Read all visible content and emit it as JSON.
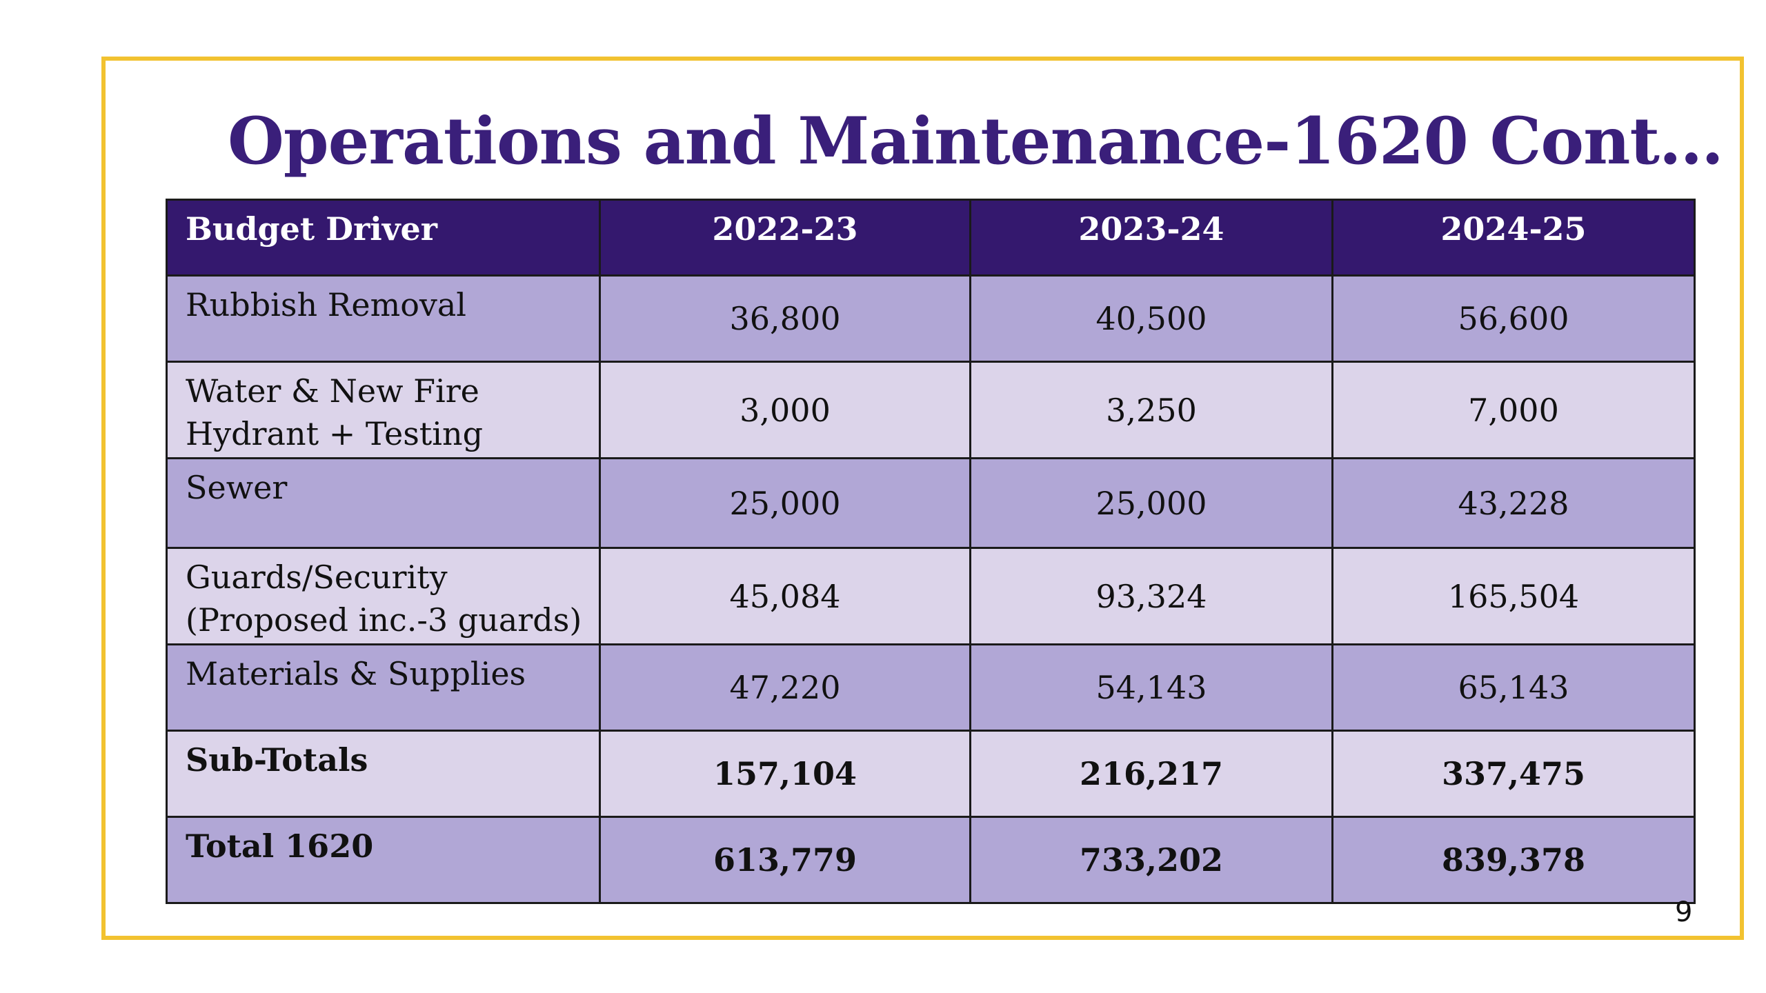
{
  "slide": {
    "title": "Operations and Maintenance-1620 Cont…",
    "page_number": "9",
    "colors": {
      "title": "#3a1f7a",
      "header_bg": "#34186e",
      "row_dark": "#b1a7d6",
      "row_light": "#dcd4ea",
      "frame_border": "#f2c230"
    }
  },
  "table": {
    "headers": [
      "Budget Driver",
      "2022-23",
      "2023-24",
      "2024-25"
    ],
    "rows": [
      {
        "driver": "Rubbish Removal",
        "y1": "36,800",
        "y2": "40,500",
        "y3": "56,600"
      },
      {
        "driver": "Water & New Fire Hydrant + Testing",
        "y1": "3,000",
        "y2": "3,250",
        "y3": "7,000"
      },
      {
        "driver": "Sewer",
        "y1": "25,000",
        "y2": "25,000",
        "y3": "43,228"
      },
      {
        "driver": "Guards/Security (Proposed inc.-3 guards)",
        "y1": "45,084",
        "y2": "93,324",
        "y3": "165,504"
      },
      {
        "driver": "Materials & Supplies",
        "y1": "47,220",
        "y2": "54,143",
        "y3": "65,143"
      },
      {
        "driver": "Sub-Totals",
        "y1": "157,104",
        "y2": "216,217",
        "y3": "337,475"
      },
      {
        "driver": "Total 1620",
        "y1": "613,779",
        "y2": "733,202",
        "y3": "839,378"
      }
    ]
  }
}
